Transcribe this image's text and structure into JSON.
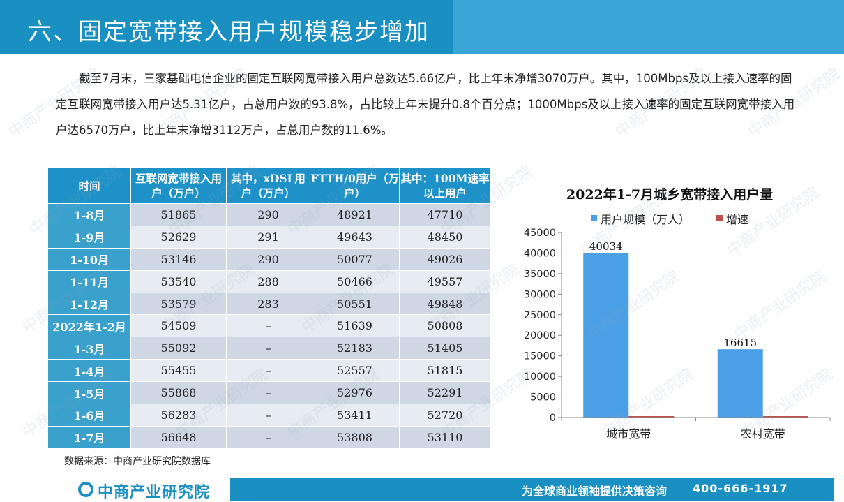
{
  "header": {
    "title": "六、固定宽带接入用户规模稳步增加"
  },
  "intro": {
    "paragraph": "截至7月末，三家基础电信企业的固定互联网宽带接入用户总数达5.66亿户，比上年末净增3070万户。其中，100Mbps及以上接入速率的固定互联网宽带接入用户达5.31亿户，占总用户数的93.8%，占比较上年末提升0.8个百分点；1000Mbps及以上接入速率的固定互联网宽带接入用户达6570万户，比上年末净增3112万户，占总用户数的11.6%。"
  },
  "table": {
    "headers": [
      "时间",
      "互联网宽带接入用户（万户）",
      "其中，xDSL用户（万户）",
      "FTTH/0用户（万户）",
      "其中：100M速率以上用户"
    ],
    "rows": [
      [
        "1-8月",
        "51865",
        "290",
        "48921",
        "47710"
      ],
      [
        "1-9月",
        "52629",
        "291",
        "49643",
        "48450"
      ],
      [
        "1-10月",
        "53146",
        "290",
        "50077",
        "49026"
      ],
      [
        "1-11月",
        "53540",
        "288",
        "50466",
        "49557"
      ],
      [
        "1-12月",
        "53579",
        "283",
        "50551",
        "49848"
      ],
      [
        "2022年1-2月",
        "54509",
        "–",
        "51639",
        "50808"
      ],
      [
        "1-3月",
        "55092",
        "–",
        "52183",
        "51405"
      ],
      [
        "1-4月",
        "55455",
        "–",
        "52557",
        "51815"
      ],
      [
        "1-5月",
        "55868",
        "–",
        "52976",
        "52291"
      ],
      [
        "1-6月",
        "56283",
        "–",
        "53411",
        "52720"
      ],
      [
        "1-7月",
        "56648",
        "–",
        "53808",
        "53110"
      ]
    ]
  },
  "source": "数据来源：中商产业研究院数据库",
  "footer": {
    "logo_text": "中商产业研究院",
    "slogan": "为全球商业领袖提供决策咨询",
    "phone": "400-666-1917"
  },
  "watermark_text": "中商产业研究院",
  "colors": {
    "header": "#1a8fc2",
    "bar_scale": "#4a9fe6",
    "bar_growth": "#c0504d"
  },
  "chart_data": {
    "type": "bar",
    "title": "2022年1-7月城乡宽带接入用户量",
    "categories": [
      "城市宽带",
      "农村宽带"
    ],
    "series": [
      {
        "name": "用户规模（万人）",
        "values": [
          40034,
          16615
        ],
        "labels": [
          "40034",
          "16615"
        ],
        "color": "#4a9fe6"
      },
      {
        "name": "增速",
        "values": [
          null,
          null
        ],
        "color": "#c0504d"
      }
    ],
    "yticks": [
      "0",
      "5000",
      "10000",
      "15000",
      "20000",
      "25000",
      "30000",
      "35000",
      "40000",
      "45000"
    ],
    "ylim": [
      0,
      45000
    ],
    "legend_position": "top",
    "grid": false
  }
}
